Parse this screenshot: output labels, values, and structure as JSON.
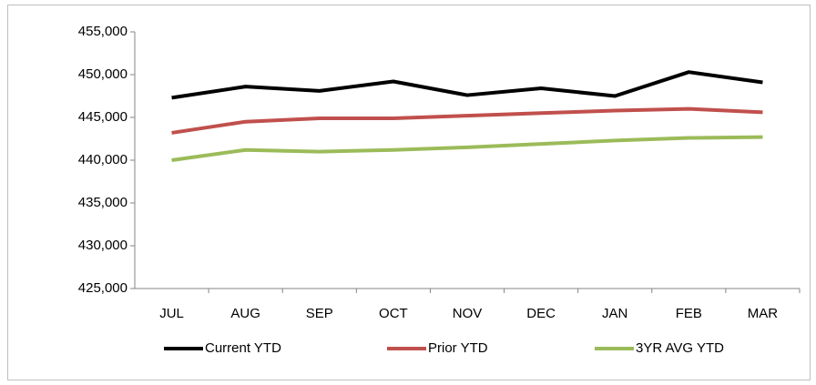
{
  "chart_data": {
    "type": "line",
    "categories": [
      "JUL",
      "AUG",
      "SEP",
      "OCT",
      "NOV",
      "DEC",
      "JAN",
      "FEB",
      "MAR"
    ],
    "series": [
      {
        "name": "Current YTD",
        "color": "#000000",
        "values": [
          447300,
          448600,
          448100,
          449200,
          447600,
          448400,
          447500,
          450300,
          449100
        ]
      },
      {
        "name": "Prior YTD",
        "color": "#c0504d",
        "values": [
          443200,
          444500,
          444900,
          444900,
          445200,
          445500,
          445800,
          446000,
          445600
        ]
      },
      {
        "name": "3YR AVG YTD",
        "color": "#9bbb59",
        "values": [
          440000,
          441200,
          441000,
          441200,
          441500,
          441900,
          442300,
          442600,
          442700
        ]
      }
    ],
    "ylim": [
      425000,
      455000
    ],
    "yticks": [
      {
        "value": 425000,
        "label": "425,000"
      },
      {
        "value": 430000,
        "label": "430,000"
      },
      {
        "value": 435000,
        "label": "435,000"
      },
      {
        "value": 440000,
        "label": "440,000"
      },
      {
        "value": 445000,
        "label": "445,000"
      },
      {
        "value": 450000,
        "label": "450,000"
      },
      {
        "value": 455000,
        "label": "455,000"
      }
    ],
    "legend": "bottom"
  }
}
